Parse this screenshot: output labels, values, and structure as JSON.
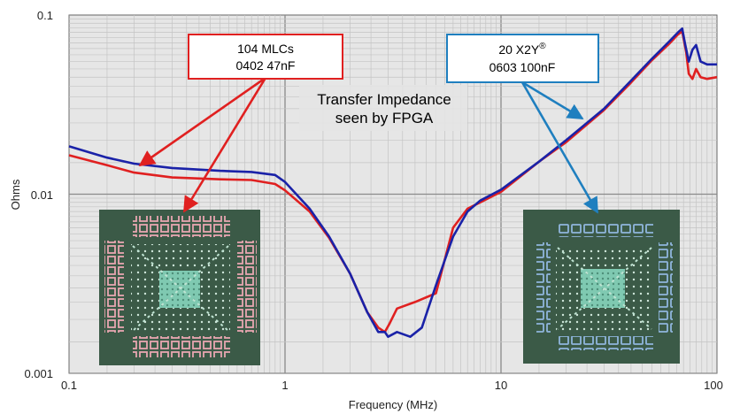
{
  "chart_data": {
    "type": "line",
    "xscale": "log",
    "yscale": "log",
    "xlim": [
      0.1,
      100
    ],
    "ylim": [
      0.001,
      0.1
    ],
    "xlabel": "Frequency (MHz)",
    "ylabel": "Ohms",
    "title": "Transfer Impedance seen by FPGA",
    "title_lines": [
      "Transfer Impedance",
      "seen by FPGA"
    ],
    "x_ticks": [
      "0.1",
      "1",
      "10",
      "100"
    ],
    "y_ticks": [
      "0.001",
      "0.01",
      "0.1"
    ],
    "grid": true,
    "series": [
      {
        "name": "104 MLCs 0402 47nF",
        "label_lines": [
          "104 MLCs",
          "0402 47nF"
        ],
        "color": "#e02020",
        "points": [
          [
            0.1,
            0.0165
          ],
          [
            0.15,
            0.0145
          ],
          [
            0.2,
            0.0132
          ],
          [
            0.3,
            0.0124
          ],
          [
            0.5,
            0.0121
          ],
          [
            0.7,
            0.012
          ],
          [
            0.9,
            0.0114
          ],
          [
            1.0,
            0.0105
          ],
          [
            1.3,
            0.008
          ],
          [
            1.6,
            0.0057
          ],
          [
            2.0,
            0.0036
          ],
          [
            2.4,
            0.0022
          ],
          [
            2.7,
            0.0018
          ],
          [
            2.9,
            0.0017
          ],
          [
            3.05,
            0.0019
          ],
          [
            3.3,
            0.0023
          ],
          [
            4.0,
            0.0025
          ],
          [
            5.0,
            0.0028
          ],
          [
            6.0,
            0.0065
          ],
          [
            7.0,
            0.0083
          ],
          [
            8.0,
            0.009
          ],
          [
            10.0,
            0.0103
          ],
          [
            15,
            0.0152
          ],
          [
            20,
            0.0195
          ],
          [
            30,
            0.0295
          ],
          [
            40,
            0.042
          ],
          [
            50,
            0.056
          ],
          [
            60,
            0.069
          ],
          [
            66,
            0.078
          ],
          [
            69,
            0.081
          ],
          [
            72,
            0.062
          ],
          [
            74,
            0.047
          ],
          [
            77,
            0.044
          ],
          [
            80,
            0.05
          ],
          [
            84,
            0.045
          ],
          [
            90,
            0.044
          ],
          [
            100,
            0.045
          ]
        ]
      },
      {
        "name": "20 X2Y® 0603 100nF",
        "label_lines": [
          "20 X2Y®",
          "0603 100nF"
        ],
        "color": "#1a22a8",
        "points": [
          [
            0.1,
            0.0185
          ],
          [
            0.15,
            0.016
          ],
          [
            0.2,
            0.0148
          ],
          [
            0.3,
            0.014
          ],
          [
            0.5,
            0.0135
          ],
          [
            0.7,
            0.0133
          ],
          [
            0.9,
            0.0128
          ],
          [
            1.0,
            0.0117
          ],
          [
            1.3,
            0.0083
          ],
          [
            1.6,
            0.0058
          ],
          [
            2.0,
            0.0036
          ],
          [
            2.4,
            0.0022
          ],
          [
            2.7,
            0.0017
          ],
          [
            2.9,
            0.0017
          ],
          [
            3.0,
            0.0016
          ],
          [
            3.3,
            0.0017
          ],
          [
            3.8,
            0.0016
          ],
          [
            4.3,
            0.0018
          ],
          [
            5.0,
            0.0031
          ],
          [
            6.0,
            0.0058
          ],
          [
            7.0,
            0.008
          ],
          [
            8.0,
            0.0092
          ],
          [
            10.0,
            0.0106
          ],
          [
            15,
            0.0152
          ],
          [
            20,
            0.02
          ],
          [
            30,
            0.03
          ],
          [
            40,
            0.043
          ],
          [
            50,
            0.057
          ],
          [
            60,
            0.071
          ],
          [
            66,
            0.08
          ],
          [
            69,
            0.084
          ],
          [
            71,
            0.07
          ],
          [
            74,
            0.055
          ],
          [
            77,
            0.064
          ],
          [
            80,
            0.068
          ],
          [
            84,
            0.055
          ],
          [
            90,
            0.053
          ],
          [
            100,
            0.053
          ]
        ]
      }
    ]
  },
  "annotations": {
    "box1": {
      "lines": [
        "104 MLCs",
        "0402 47nF"
      ],
      "border_color": "#e02020"
    },
    "box2": {
      "lines": [
        "20 X2Y",
        "0603 100nF"
      ],
      "registered_mark": "®",
      "border_color": "#1f7fbf"
    },
    "title_lines": [
      "Transfer Impedance",
      "seen by FPGA"
    ]
  },
  "colors": {
    "red_series": "#e02020",
    "blue_series": "#1a22a8",
    "blue_arrow": "#1f7fbf",
    "plot_background": "#e6e6e6",
    "board_photo": "#3b5a47"
  },
  "images": {
    "left_board": "board-photo-mlc",
    "right_board": "board-photo-x2y"
  }
}
